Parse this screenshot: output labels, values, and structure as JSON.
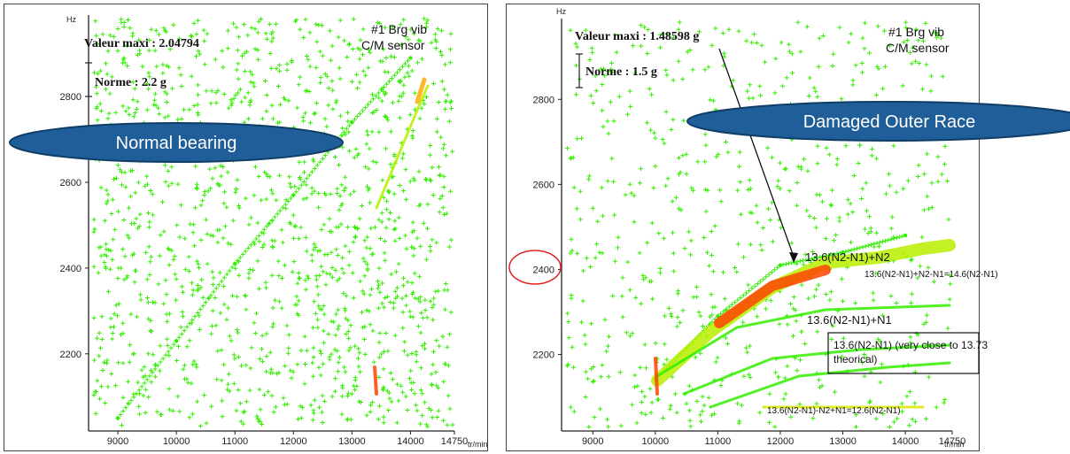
{
  "chart_data": [
    {
      "type": "scatter",
      "title": "",
      "xlabel": "tr/min",
      "ylabel": "Hz",
      "xlim": [
        8500,
        14750
      ],
      "ylim": [
        2020,
        2990
      ],
      "x_ticks": [
        "9000",
        "10000",
        "11000",
        "12000",
        "13000",
        "14000",
        "14750"
      ],
      "y_ticks": [
        "2800",
        "2600",
        "2400",
        "2200"
      ],
      "max_label": "Valeur maxi : 2.04794",
      "norm_label": "Norme : 2.2 g",
      "sensor_line1": "#1 Brg vib",
      "sensor_line2": "C/M sensor",
      "callout": "Normal bearing",
      "series": [
        {
          "values": [
            [
              9000,
              2050
            ],
            [
              10000,
              2230
            ],
            [
              11000,
              2410
            ],
            [
              12000,
              2570
            ],
            [
              13000,
              2740
            ],
            [
              14000,
              2890
            ]
          ]
        }
      ]
    },
    {
      "type": "scatter",
      "title": "",
      "xlabel": "tr/min",
      "ylabel": "Hz",
      "xlim": [
        8500,
        14750
      ],
      "ylim": [
        2020,
        2990
      ],
      "x_ticks": [
        "9000",
        "10000",
        "11000",
        "12000",
        "13000",
        "14000",
        "14750"
      ],
      "y_ticks": [
        "2800",
        "2600",
        "2400",
        "2200"
      ],
      "max_label": "Valeur maxi : 1.48598 g",
      "norm_label": "Norme : 1.5 g",
      "sensor_line1": "#1 Brg vib",
      "sensor_line2": "C/M sensor",
      "callout": "Damaged Outer Race",
      "annotations": [
        "13.6(N2-N1)+N2",
        "13.6(N2-N1)+N2-N1=14.6(N2-N1)",
        "13.6(N2-N1)+N1",
        "13.6(N2-N1) (very close to 13.73",
        "theorical)",
        "13.6(N2-N1)-N2+N1=12.6(N2-N1)"
      ],
      "series": [
        {
          "values": [
            [
              10000,
              2140
            ],
            [
              11000,
              2290
            ],
            [
              12000,
              2410
            ],
            [
              13000,
              2440
            ],
            [
              14000,
              2480
            ]
          ]
        }
      ]
    }
  ],
  "colors": {
    "points": "#33ee00",
    "hot": "#ff4400",
    "warm": "#ffaa00",
    "oval": "#1f5e98",
    "circle": "#e02020"
  }
}
